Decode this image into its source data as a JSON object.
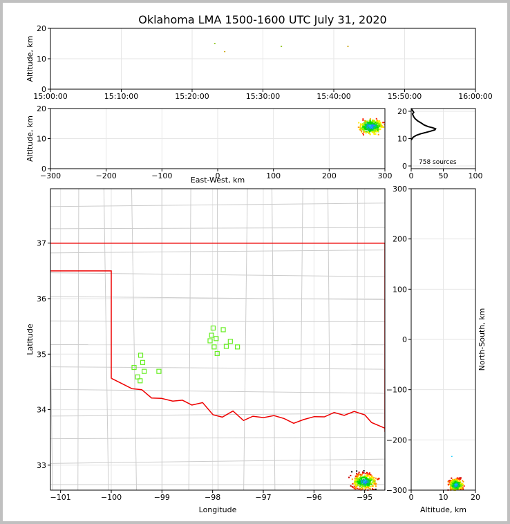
{
  "title": "Oklahoma LMA 1500-1600 UTC July 31, 2020",
  "source_count_label": "758 sources",
  "chart_data": [
    {
      "id": "time-height",
      "type": "scatter",
      "xlabel": "",
      "ylabel": "Altitude, km",
      "x_tick_labels": [
        "15:00:00",
        "15:10:00",
        "15:20:00",
        "15:30:00",
        "15:40:00",
        "15:50:00",
        "16:00:00"
      ],
      "x_ticks_minutes": [
        0,
        10,
        20,
        30,
        40,
        50,
        60
      ],
      "xlim_minutes": [
        0,
        60
      ],
      "y_ticks": [
        0,
        10,
        20
      ],
      "ylim": [
        0,
        20
      ],
      "points_minutes_km": [
        [
          23.2,
          15.0
        ],
        [
          24.6,
          12.3
        ],
        [
          32.6,
          14.0
        ],
        [
          42.0,
          14.0
        ]
      ]
    },
    {
      "id": "east-west-altitude",
      "type": "scatter",
      "xlabel": "East-West, km",
      "ylabel": "Altitude, km",
      "x_ticks": [
        -300,
        -200,
        -100,
        0,
        100,
        200,
        300
      ],
      "xlim": [
        -300,
        300
      ],
      "y_ticks": [
        0,
        10,
        20
      ],
      "ylim": [
        0,
        20
      ],
      "source_cluster": {
        "x_range": [
          228,
          300
        ],
        "alt_range": [
          11,
          20
        ],
        "core_x": 275,
        "core_alt": 14
      }
    },
    {
      "id": "altitude-histogram",
      "type": "line",
      "xlabel": "",
      "ylabel": "",
      "x_ticks": [
        0,
        50,
        100
      ],
      "xlim": [
        0,
        100
      ],
      "y_ticks": [
        0,
        10,
        20
      ],
      "ylim": [
        -1,
        21
      ],
      "profile_count_alt": [
        [
          0,
          9.5
        ],
        [
          3,
          10.5
        ],
        [
          8,
          11.2
        ],
        [
          15,
          11.8
        ],
        [
          22,
          12.2
        ],
        [
          30,
          12.7
        ],
        [
          37,
          13.2
        ],
        [
          38,
          13.6
        ],
        [
          33,
          14.0
        ],
        [
          26,
          14.4
        ],
        [
          20,
          15.0
        ],
        [
          15,
          15.8
        ],
        [
          10,
          16.5
        ],
        [
          6,
          17.3
        ],
        [
          4,
          18.0
        ],
        [
          2,
          19.0
        ],
        [
          4,
          19.6
        ],
        [
          2,
          20.3
        ],
        [
          0,
          21
        ]
      ]
    },
    {
      "id": "plan-view",
      "type": "scatter",
      "xlabel": "Longitude",
      "ylabel": "Latitude",
      "x_ticks": [
        -101,
        -100,
        -99,
        -98,
        -97,
        -96,
        -95
      ],
      "xlim": [
        -101.2,
        -94.6
      ],
      "y_ticks": [
        33,
        34,
        35,
        36,
        37
      ],
      "ylim": [
        32.55,
        37.98
      ],
      "stations_lon_lat": [
        [
          -97.99,
          35.47
        ],
        [
          -97.79,
          35.44
        ],
        [
          -98.02,
          35.34
        ],
        [
          -97.93,
          35.28
        ],
        [
          -98.05,
          35.24
        ],
        [
          -97.65,
          35.23
        ],
        [
          -97.97,
          35.13
        ],
        [
          -97.73,
          35.14
        ],
        [
          -97.51,
          35.13
        ],
        [
          -97.91,
          35.01
        ],
        [
          -99.42,
          34.98
        ],
        [
          -99.38,
          34.85
        ],
        [
          -99.55,
          34.76
        ],
        [
          -99.35,
          34.69
        ],
        [
          -99.06,
          34.69
        ],
        [
          -99.48,
          34.59
        ],
        [
          -99.43,
          34.52
        ]
      ],
      "source_cluster": {
        "lon_range": [
          -95.4,
          -94.6
        ],
        "lat_range": [
          32.55,
          32.95
        ],
        "core_lon": -95.0,
        "core_lat": 32.7
      }
    },
    {
      "id": "altitude-north-south",
      "type": "scatter",
      "xlabel": "Altitude, km",
      "ylabel": "North-South, km",
      "x_ticks": [
        0,
        10,
        20
      ],
      "xlim": [
        0,
        20
      ],
      "y_ticks": [
        -300,
        -200,
        -100,
        0,
        100,
        200,
        300
      ],
      "ylim": [
        -300,
        300
      ],
      "source_cluster": {
        "alt_range": [
          11,
          20
        ],
        "ns_range": [
          -300,
          -262
        ],
        "core_alt": 14,
        "core_ns": -290
      }
    }
  ]
}
